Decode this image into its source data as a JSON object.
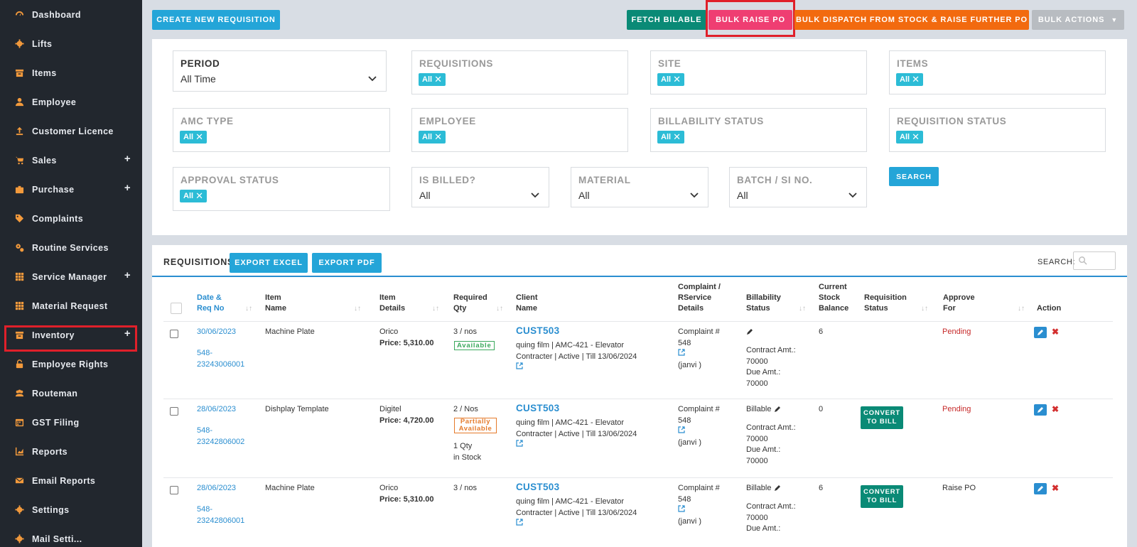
{
  "sidebar": {
    "items": [
      {
        "label": "Dashboard",
        "icon": "dashboard-icon",
        "plus": false
      },
      {
        "label": "Lifts",
        "icon": "gear-icon",
        "plus": false
      },
      {
        "label": "Items",
        "icon": "archive-icon",
        "plus": false
      },
      {
        "label": "Employee",
        "icon": "user-icon",
        "plus": false
      },
      {
        "label": "Customer Licence",
        "icon": "upload-icon",
        "plus": false
      },
      {
        "label": "Sales",
        "icon": "cart-icon",
        "plus": true
      },
      {
        "label": "Purchase",
        "icon": "briefcase-icon",
        "plus": true
      },
      {
        "label": "Complaints",
        "icon": "tag-icon",
        "plus": false
      },
      {
        "label": "Routine Services",
        "icon": "gears-icon",
        "plus": false
      },
      {
        "label": "Service Manager",
        "icon": "grid-icon",
        "plus": true
      },
      {
        "label": "Material Request",
        "icon": "grid-icon",
        "plus": false
      },
      {
        "label": "Inventory",
        "icon": "archive-icon",
        "plus": true
      },
      {
        "label": "Employee Rights",
        "icon": "unlock-icon",
        "plus": false
      },
      {
        "label": "Routeman",
        "icon": "users-icon",
        "plus": false
      },
      {
        "label": "GST Filing",
        "icon": "calendar-icon",
        "plus": false
      },
      {
        "label": "Reports",
        "icon": "chart-icon",
        "plus": false
      },
      {
        "label": "Email Reports",
        "icon": "envelope-icon",
        "plus": false
      },
      {
        "label": "Settings",
        "icon": "gear-icon",
        "plus": false
      },
      {
        "label": "Mail Setti...",
        "icon": "gear-icon",
        "plus": false
      }
    ]
  },
  "toolbar": {
    "create_label": "CREATE NEW REQUISITION",
    "fetch_label": "FETCH BILABLE",
    "bulk_raise_label": "BULK RAISE PO",
    "bulk_dispatch_label": "BULK DISPATCH FROM STOCK & RAISE FURTHER PO",
    "bulk_actions_label": "BULK ACTIONS"
  },
  "filters": {
    "period": {
      "label": "PERIOD",
      "value": "All Time"
    },
    "requisitions": {
      "label": "REQUISITIONS",
      "tag": "All"
    },
    "site": {
      "label": "SITE",
      "tag": "All"
    },
    "items": {
      "label": "ITEMS",
      "tag": "All"
    },
    "amc_type": {
      "label": "AMC TYPE",
      "tag": "All"
    },
    "employee": {
      "label": "EMPLOYEE",
      "tag": "All"
    },
    "billability": {
      "label": "BILLABILITY STATUS",
      "tag": "All"
    },
    "req_status": {
      "label": "REQUISITION STATUS",
      "tag": "All"
    },
    "approval": {
      "label": "APPROVAL STATUS",
      "tag": "All"
    },
    "is_billed": {
      "label": "IS BILLED?",
      "value": "All"
    },
    "material": {
      "label": "MATERIAL",
      "value": "All"
    },
    "batch": {
      "label": "BATCH / SI NO.",
      "value": "All"
    },
    "search_label": "SEARCH"
  },
  "table": {
    "title": "REQUISITIONS",
    "export_excel": "EXPORT EXCEL",
    "export_pdf": "EXPORT PDF",
    "search_label": "SEARCH:",
    "headers": {
      "date": [
        "Date &",
        "Req No"
      ],
      "item_name": [
        "Item",
        "Name"
      ],
      "item_details": [
        "Item",
        "Details"
      ],
      "req_qty": [
        "Required",
        "Qty"
      ],
      "client": [
        "Client",
        "Name"
      ],
      "complaint": [
        "Complaint /",
        "RService",
        "Details"
      ],
      "billability": [
        "Billability",
        "Status"
      ],
      "stock": [
        "Current",
        "Stock",
        "Balance"
      ],
      "req_status": [
        "Requisition",
        "Status"
      ],
      "approve": [
        "Approve",
        "For"
      ],
      "action": [
        "Action"
      ]
    },
    "rows": [
      {
        "date": "30/06/2023",
        "req_a": "548-",
        "req_b": "23243006001",
        "item_name": "Machine Plate",
        "item_brand": "Orico",
        "price": "Price: 5,310.00",
        "qty": "3 / nos",
        "avail": "Available",
        "stock_note_a": "",
        "stock_note_b": "",
        "cust": "CUST503",
        "client_a": "quing film | AMC-421 - Elevator",
        "client_b": "Contracter | Active | Till 13/06/2024",
        "complaint_a": "Complaint #",
        "complaint_b": "548",
        "complaint_c": "(janvi )",
        "billable": "",
        "contract_a": "Contract Amt.:",
        "contract_b": "70000",
        "due_a": "Due Amt.:",
        "due_b": "70000",
        "stock": "6",
        "convert": "",
        "approve": "Pending"
      },
      {
        "date": "28/06/2023",
        "req_a": "548-",
        "req_b": "23242806002",
        "item_name": "Dishplay Template",
        "item_brand": "Digitel",
        "price": "Price: 4,720.00",
        "qty": "2 / Nos",
        "avail": "Partially Available",
        "stock_note_a": "1 Qty",
        "stock_note_b": "in Stock",
        "cust": "CUST503",
        "client_a": "quing film | AMC-421 - Elevator",
        "client_b": "Contracter | Active | Till 13/06/2024",
        "complaint_a": "Complaint #",
        "complaint_b": "548",
        "complaint_c": "(janvi )",
        "billable": "Billable",
        "contract_a": "Contract Amt.:",
        "contract_b": "70000",
        "due_a": "Due Amt.:",
        "due_b": "70000",
        "stock": "0",
        "convert": "CONVERT TO BILL",
        "approve": "Pending"
      },
      {
        "date": "28/06/2023",
        "req_a": "548-",
        "req_b": "23242806001",
        "item_name": "Machine Plate",
        "item_brand": "Orico",
        "price": "Price: 5,310.00",
        "qty": "3 / nos",
        "avail": "",
        "stock_note_a": "",
        "stock_note_b": "",
        "cust": "CUST503",
        "client_a": "quing film | AMC-421 - Elevator",
        "client_b": "Contracter | Active | Till 13/06/2024",
        "complaint_a": "Complaint #",
        "complaint_b": "548",
        "complaint_c": "(janvi )",
        "billable": "Billable",
        "contract_a": "Contract Amt.:",
        "contract_b": "70000",
        "due_a": "Due Amt.:",
        "due_b": "",
        "stock": "6",
        "convert": "CONVERT TO BILL",
        "approve": "Raise PO"
      }
    ]
  }
}
